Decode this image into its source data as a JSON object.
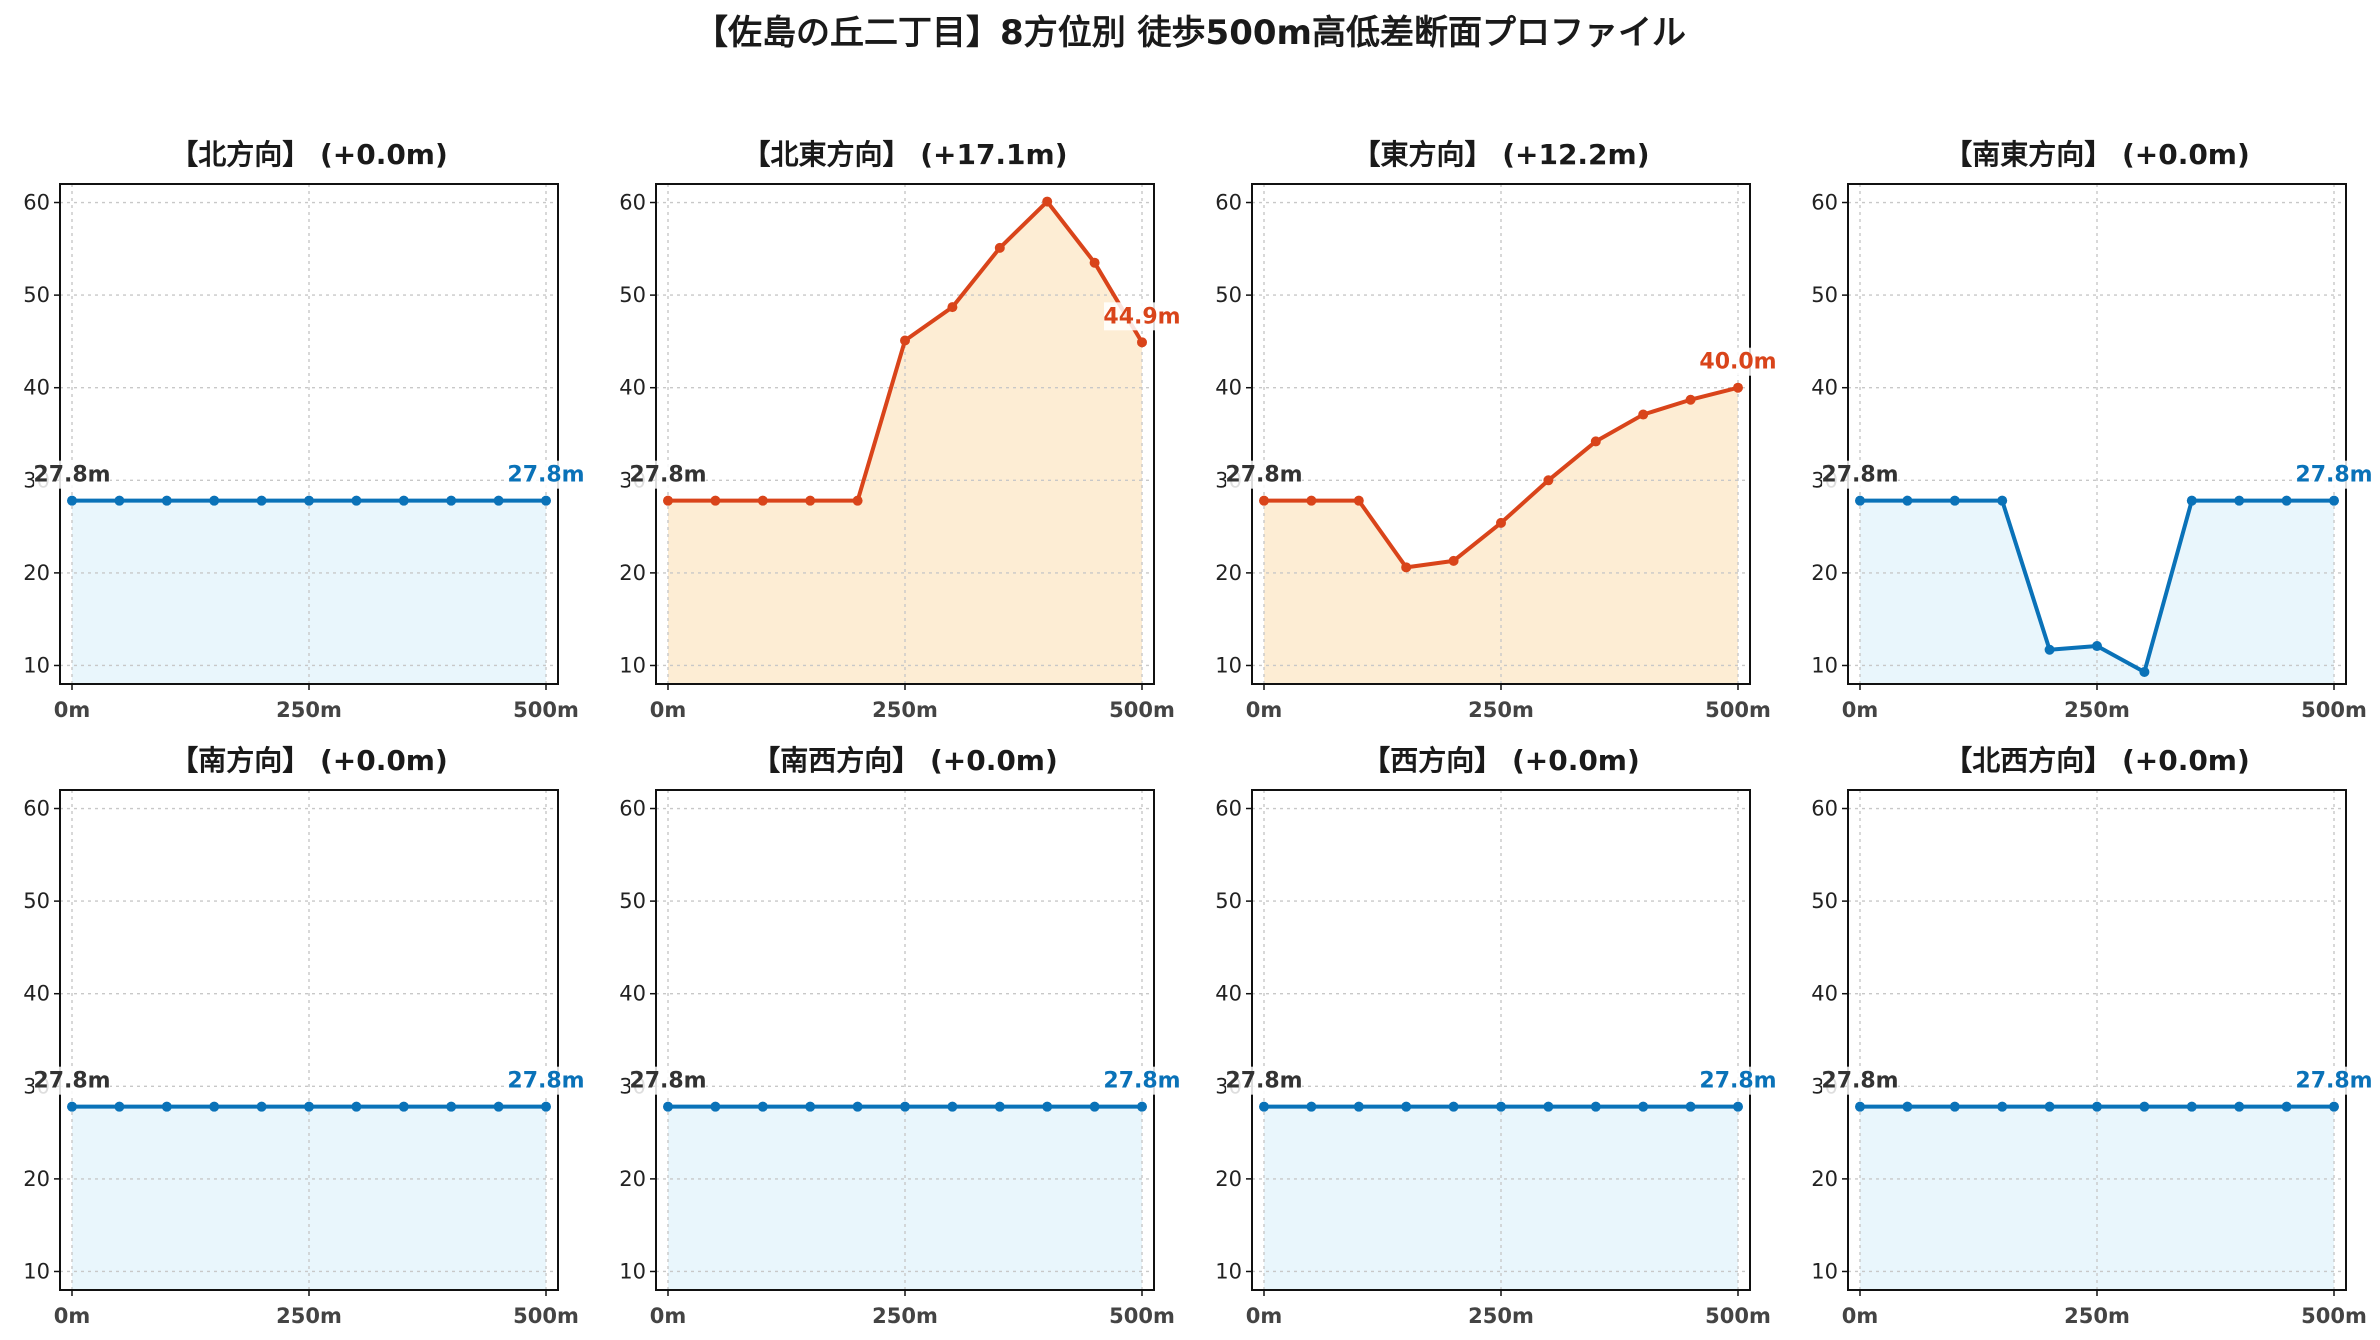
{
  "title": "【佐島の丘二丁目】8方位別 徒歩500m高低差断面プロファイル",
  "colors": {
    "flat_line": "#0a72b8",
    "flat_fill": "#e9f6fc",
    "up_line": "#d9441a",
    "up_fill": "#fdedd4",
    "start_label": "#333333"
  },
  "chart_data": [
    {
      "type": "area",
      "title": "【北方向】 (+0.0m)",
      "trend": "flat",
      "x": [
        0,
        50,
        100,
        150,
        200,
        250,
        300,
        350,
        400,
        450,
        500
      ],
      "y": [
        27.8,
        27.8,
        27.8,
        27.8,
        27.8,
        27.8,
        27.8,
        27.8,
        27.8,
        27.8,
        27.8
      ],
      "start_label": "27.8m",
      "end_label": "27.8m",
      "xticks": [
        "0m",
        "250m",
        "500m"
      ],
      "ylim": [
        8,
        62
      ],
      "yticks": [
        "10",
        "20",
        "30",
        "40",
        "50",
        "60"
      ],
      "grid": true
    },
    {
      "type": "area",
      "title": "【北東方向】 (+17.1m)",
      "trend": "up",
      "x": [
        0,
        50,
        100,
        150,
        200,
        250,
        300,
        350,
        400,
        450,
        500
      ],
      "y": [
        27.8,
        27.8,
        27.8,
        27.8,
        27.8,
        45.1,
        48.7,
        55.1,
        60.1,
        53.5,
        44.9
      ],
      "start_label": "27.8m",
      "end_label": "44.9m",
      "xticks": [
        "0m",
        "250m",
        "500m"
      ],
      "ylim": [
        8,
        62
      ],
      "yticks": [
        "10",
        "20",
        "30",
        "40",
        "50",
        "60"
      ],
      "grid": true
    },
    {
      "type": "area",
      "title": "【東方向】 (+12.2m)",
      "trend": "up",
      "x": [
        0,
        50,
        100,
        150,
        200,
        250,
        300,
        350,
        400,
        450,
        500
      ],
      "y": [
        27.8,
        27.8,
        27.8,
        20.6,
        21.3,
        25.4,
        30.0,
        34.2,
        37.1,
        38.7,
        40.0
      ],
      "start_label": "27.8m",
      "end_label": "40.0m",
      "xticks": [
        "0m",
        "250m",
        "500m"
      ],
      "ylim": [
        8,
        62
      ],
      "yticks": [
        "10",
        "20",
        "30",
        "40",
        "50",
        "60"
      ],
      "grid": true
    },
    {
      "type": "area",
      "title": "【南東方向】 (+0.0m)",
      "trend": "flat",
      "x": [
        0,
        50,
        100,
        150,
        200,
        250,
        300,
        350,
        400,
        450,
        500
      ],
      "y": [
        27.8,
        27.8,
        27.8,
        27.8,
        11.7,
        12.1,
        9.3,
        27.8,
        27.8,
        27.8,
        27.8
      ],
      "start_label": "27.8m",
      "end_label": "27.8m",
      "xticks": [
        "0m",
        "250m",
        "500m"
      ],
      "ylim": [
        8,
        62
      ],
      "yticks": [
        "10",
        "20",
        "30",
        "40",
        "50",
        "60"
      ],
      "grid": true
    },
    {
      "type": "area",
      "title": "【南方向】 (+0.0m)",
      "trend": "flat",
      "x": [
        0,
        50,
        100,
        150,
        200,
        250,
        300,
        350,
        400,
        450,
        500
      ],
      "y": [
        27.8,
        27.8,
        27.8,
        27.8,
        27.8,
        27.8,
        27.8,
        27.8,
        27.8,
        27.8,
        27.8
      ],
      "start_label": "27.8m",
      "end_label": "27.8m",
      "xticks": [
        "0m",
        "250m",
        "500m"
      ],
      "ylim": [
        8,
        62
      ],
      "yticks": [
        "10",
        "20",
        "30",
        "40",
        "50",
        "60"
      ],
      "grid": true
    },
    {
      "type": "area",
      "title": "【南西方向】 (+0.0m)",
      "trend": "flat",
      "x": [
        0,
        50,
        100,
        150,
        200,
        250,
        300,
        350,
        400,
        450,
        500
      ],
      "y": [
        27.8,
        27.8,
        27.8,
        27.8,
        27.8,
        27.8,
        27.8,
        27.8,
        27.8,
        27.8,
        27.8
      ],
      "start_label": "27.8m",
      "end_label": "27.8m",
      "xticks": [
        "0m",
        "250m",
        "500m"
      ],
      "ylim": [
        8,
        62
      ],
      "yticks": [
        "10",
        "20",
        "30",
        "40",
        "50",
        "60"
      ],
      "grid": true
    },
    {
      "type": "area",
      "title": "【西方向】 (+0.0m)",
      "trend": "flat",
      "x": [
        0,
        50,
        100,
        150,
        200,
        250,
        300,
        350,
        400,
        450,
        500
      ],
      "y": [
        27.8,
        27.8,
        27.8,
        27.8,
        27.8,
        27.8,
        27.8,
        27.8,
        27.8,
        27.8,
        27.8
      ],
      "start_label": "27.8m",
      "end_label": "27.8m",
      "xticks": [
        "0m",
        "250m",
        "500m"
      ],
      "ylim": [
        8,
        62
      ],
      "yticks": [
        "10",
        "20",
        "30",
        "40",
        "50",
        "60"
      ],
      "grid": true
    },
    {
      "type": "area",
      "title": "【北西方向】 (+0.0m)",
      "trend": "flat",
      "x": [
        0,
        50,
        100,
        150,
        200,
        250,
        300,
        350,
        400,
        450,
        500
      ],
      "y": [
        27.8,
        27.8,
        27.8,
        27.8,
        27.8,
        27.8,
        27.8,
        27.8,
        27.8,
        27.8,
        27.8
      ],
      "start_label": "27.8m",
      "end_label": "27.8m",
      "xticks": [
        "0m",
        "250m",
        "500m"
      ],
      "ylim": [
        8,
        62
      ],
      "yticks": [
        "10",
        "20",
        "30",
        "40",
        "50",
        "60"
      ],
      "grid": true
    }
  ]
}
